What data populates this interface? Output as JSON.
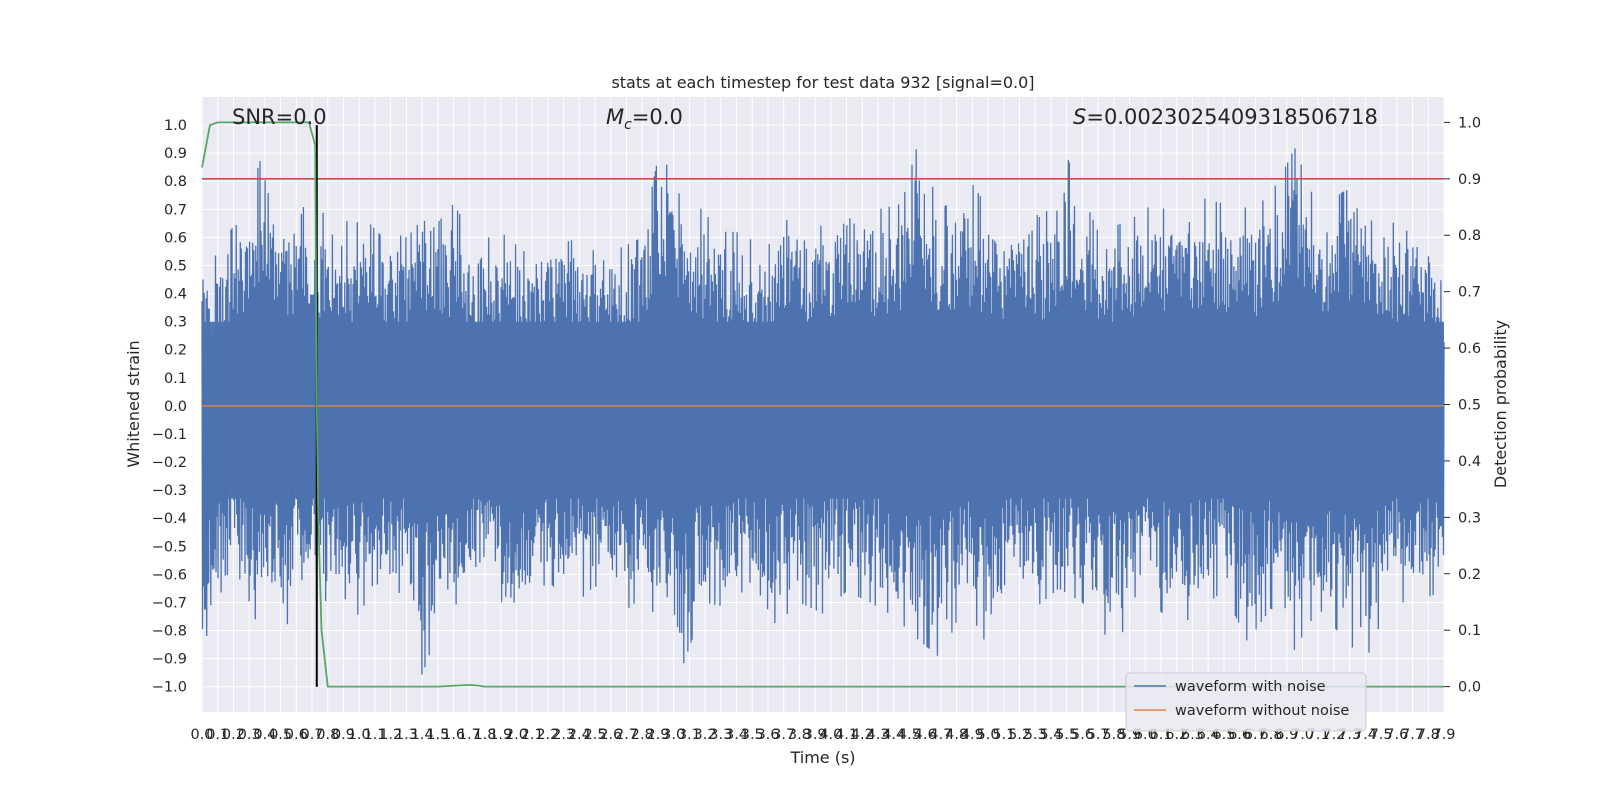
{
  "chart_data": {
    "type": "line",
    "title": "stats at each timestep for test data 932 [signal=0.0]",
    "xlabel": "Time (s)",
    "ylabel": "Whitened strain",
    "y2label": "Detection probability",
    "xlim": [
      0.0,
      7.9
    ],
    "ylim": [
      -1.09,
      1.1
    ],
    "y2lim": [
      -0.045,
      1.045
    ],
    "x_tick_step": 0.1,
    "y_ticks": [
      1.0,
      0.9,
      0.8,
      0.7,
      0.6,
      0.5,
      0.4,
      0.3,
      0.2,
      0.1,
      0.0,
      -0.1,
      -0.2,
      -0.3,
      -0.4,
      -0.5,
      -0.6,
      -0.7,
      -0.8,
      -0.9,
      -1.0
    ],
    "y_tick_labels": [
      "1.0",
      "0.9",
      "0.8",
      "0.7",
      "0.6",
      "0.5",
      "0.4",
      "0.3",
      "0.2",
      "0.1",
      "0.0",
      "−0.1",
      "−0.2",
      "−0.3",
      "−0.4",
      "−0.5",
      "−0.6",
      "−0.7",
      "−0.8",
      "−0.9",
      "−1.0"
    ],
    "y2_ticks": [
      1.0,
      0.9,
      0.8,
      0.7,
      0.6,
      0.5,
      0.4,
      0.3,
      0.2,
      0.1,
      0.0
    ],
    "y2_tick_labels": [
      "1.0",
      "0.9",
      "0.8",
      "0.7",
      "0.6",
      "0.5",
      "0.4",
      "0.3",
      "0.2",
      "0.1",
      "0.0"
    ],
    "grid": true,
    "legend_position": "lower-right",
    "annotations": {
      "snr": "SNR=0.0",
      "mc_symbol": "M",
      "mc_subscript": "c",
      "mc_value": "=0.0",
      "s_symbol": "S",
      "s_value": "=0.0023025409318506718"
    },
    "series": [
      {
        "name": "waveform with noise",
        "color": "#4c72b0",
        "envelope_note_free": true,
        "peak_positive": [
          [
            0.02,
            0.45
          ],
          [
            0.08,
            0.53
          ],
          [
            0.15,
            0.6
          ],
          [
            0.2,
            0.64
          ],
          [
            0.28,
            0.66
          ],
          [
            0.33,
            0.8
          ],
          [
            0.4,
            0.93
          ],
          [
            0.5,
            0.68
          ],
          [
            0.57,
            0.66
          ],
          [
            0.65,
            0.82
          ],
          [
            0.7,
            0.6
          ],
          [
            0.78,
            0.7
          ],
          [
            0.85,
            0.68
          ],
          [
            0.95,
            0.65
          ],
          [
            1.05,
            0.66
          ],
          [
            1.15,
            0.6
          ],
          [
            1.2,
            0.62
          ],
          [
            1.3,
            0.6
          ],
          [
            1.38,
            0.88
          ],
          [
            1.45,
            0.62
          ],
          [
            1.6,
            0.72
          ],
          [
            1.75,
            0.58
          ],
          [
            1.9,
            0.62
          ],
          [
            2.05,
            0.55
          ],
          [
            2.2,
            0.6
          ],
          [
            2.3,
            0.58
          ],
          [
            2.5,
            0.62
          ],
          [
            2.65,
            0.56
          ],
          [
            2.8,
            0.6
          ],
          [
            2.92,
            0.94
          ],
          [
            3.0,
            0.76
          ],
          [
            3.1,
            0.75
          ],
          [
            3.3,
            0.62
          ],
          [
            3.4,
            0.62
          ],
          [
            3.6,
            0.56
          ],
          [
            3.7,
            0.78
          ],
          [
            3.8,
            0.66
          ],
          [
            3.95,
            0.64
          ],
          [
            4.1,
            0.78
          ],
          [
            4.3,
            0.7
          ],
          [
            4.45,
            0.72
          ],
          [
            4.55,
            0.93
          ],
          [
            4.7,
            0.7
          ],
          [
            4.9,
            0.79
          ],
          [
            5.1,
            0.62
          ],
          [
            5.2,
            0.74
          ],
          [
            5.35,
            0.66
          ],
          [
            5.5,
            0.89
          ],
          [
            5.7,
            0.62
          ],
          [
            5.9,
            0.66
          ],
          [
            6.05,
            0.72
          ],
          [
            6.2,
            0.68
          ],
          [
            6.3,
            0.75
          ],
          [
            6.5,
            0.72
          ],
          [
            6.7,
            0.7
          ],
          [
            6.85,
            0.8
          ],
          [
            6.95,
            0.92
          ],
          [
            7.1,
            0.7
          ],
          [
            7.25,
            0.76
          ],
          [
            7.4,
            0.8
          ],
          [
            7.55,
            0.64
          ],
          [
            7.7,
            0.71
          ],
          [
            7.8,
            0.64
          ],
          [
            7.9,
            0.4
          ]
        ],
        "peak_negative": [
          [
            0.02,
            -0.99
          ],
          [
            0.08,
            -0.76
          ],
          [
            0.15,
            -0.6
          ],
          [
            0.25,
            -0.62
          ],
          [
            0.3,
            -0.83
          ],
          [
            0.4,
            -0.65
          ],
          [
            0.52,
            -0.85
          ],
          [
            0.6,
            -0.6
          ],
          [
            0.7,
            -0.66
          ],
          [
            0.8,
            -0.7
          ],
          [
            0.9,
            -0.68
          ],
          [
            1.0,
            -0.75
          ],
          [
            1.1,
            -0.62
          ],
          [
            1.2,
            -0.72
          ],
          [
            1.3,
            -0.62
          ],
          [
            1.4,
            -0.96
          ],
          [
            1.5,
            -0.8
          ],
          [
            1.65,
            -0.68
          ],
          [
            1.8,
            -0.62
          ],
          [
            1.95,
            -0.84
          ],
          [
            2.1,
            -0.7
          ],
          [
            2.2,
            -0.62
          ],
          [
            2.35,
            -0.72
          ],
          [
            2.5,
            -0.64
          ],
          [
            2.65,
            -0.75
          ],
          [
            2.8,
            -0.68
          ],
          [
            2.95,
            -0.8
          ],
          [
            3.05,
            -0.94
          ],
          [
            3.2,
            -0.7
          ],
          [
            3.35,
            -0.72
          ],
          [
            3.5,
            -0.62
          ],
          [
            3.65,
            -0.78
          ],
          [
            3.8,
            -0.7
          ],
          [
            3.95,
            -0.74
          ],
          [
            4.1,
            -0.66
          ],
          [
            4.25,
            -0.7
          ],
          [
            4.4,
            -0.75
          ],
          [
            4.55,
            -0.83
          ],
          [
            4.7,
            -0.9
          ],
          [
            4.85,
            -0.7
          ],
          [
            5.0,
            -0.86
          ],
          [
            5.15,
            -0.66
          ],
          [
            5.3,
            -0.72
          ],
          [
            5.45,
            -0.65
          ],
          [
            5.6,
            -0.7
          ],
          [
            5.75,
            -0.82
          ],
          [
            5.9,
            -0.8
          ],
          [
            6.05,
            -0.7
          ],
          [
            6.2,
            -0.8
          ],
          [
            6.35,
            -0.72
          ],
          [
            6.5,
            -0.66
          ],
          [
            6.65,
            -0.84
          ],
          [
            6.8,
            -0.72
          ],
          [
            6.95,
            -0.87
          ],
          [
            7.1,
            -0.72
          ],
          [
            7.25,
            -0.82
          ],
          [
            7.4,
            -0.91
          ],
          [
            7.55,
            -0.7
          ],
          [
            7.7,
            -0.7
          ],
          [
            7.85,
            -0.67
          ]
        ]
      },
      {
        "name": "waveform without noise",
        "color": "#dd8452",
        "x": [
          0.0,
          7.9
        ],
        "y": [
          0.0,
          0.0
        ]
      },
      {
        "name": "detection probability",
        "color": "#55a868",
        "axis": "right",
        "x": [
          0.0,
          0.05,
          0.1,
          0.15,
          0.2,
          0.3,
          0.4,
          0.5,
          0.6,
          0.68,
          0.72,
          0.73,
          0.74,
          0.76,
          0.8,
          1.0,
          1.5,
          1.7,
          1.75,
          1.8,
          2.5,
          4.0,
          6.0,
          7.9
        ],
        "y": [
          0.92,
          0.995,
          1.0,
          1.0,
          1.0,
          1.0,
          1.0,
          1.0,
          1.0,
          1.0,
          0.96,
          0.5,
          0.3,
          0.1,
          0.0,
          0.0,
          0.0,
          0.003,
          0.002,
          0.0,
          0.0,
          0.0,
          0.0,
          0.0
        ]
      }
    ],
    "reference_lines": {
      "threshold_y2": 0.9,
      "threshold_color": "#c44e52",
      "vertical_x": 0.73,
      "vertical_color": "#000000"
    }
  }
}
